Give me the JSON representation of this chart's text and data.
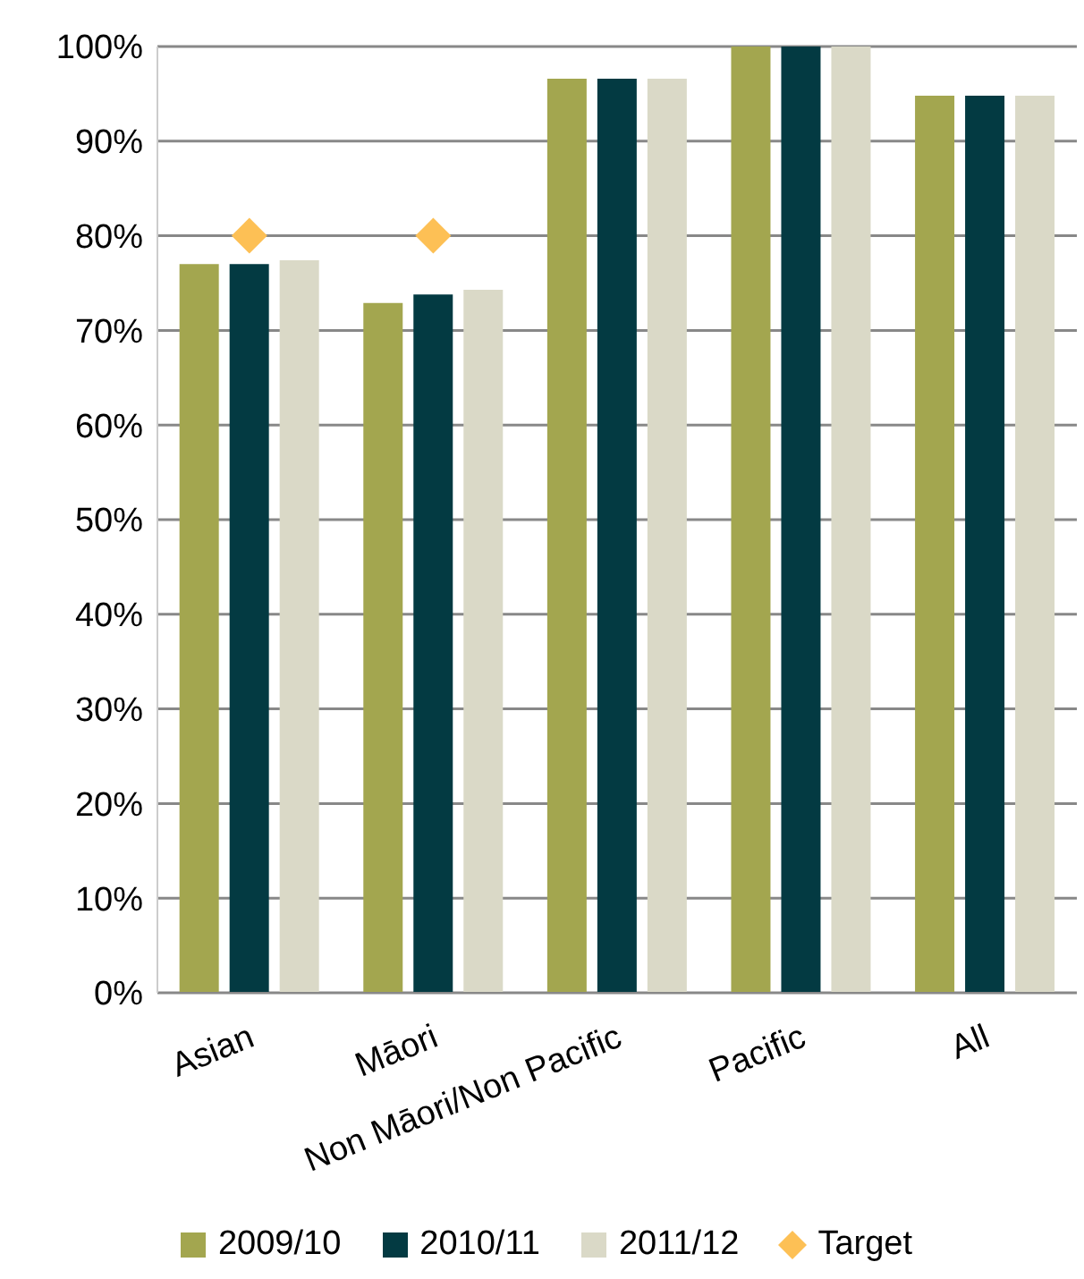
{
  "chart_data": {
    "type": "bar",
    "categories": [
      "Asian",
      "Māori",
      "Non Māori/Non Pacific",
      "Pacific",
      "All"
    ],
    "series": [
      {
        "name": "2009/10",
        "color": "#a3a64f",
        "values": [
          77,
          72.9,
          96.6,
          100,
          94.8
        ]
      },
      {
        "name": "2010/11",
        "color": "#033a42",
        "values": [
          77,
          73.8,
          96.6,
          100,
          94.8
        ]
      },
      {
        "name": "2011/12",
        "color": "#dad9c7",
        "values": [
          77.4,
          74.3,
          96.6,
          100,
          94.8
        ]
      },
      {
        "name": "Target",
        "type": "scatter",
        "color": "#fdc055",
        "marker": "diamond",
        "values": [
          80,
          80,
          null,
          null,
          null
        ]
      }
    ],
    "ylim": [
      0,
      100
    ],
    "yticks": [
      {
        "value": 0,
        "label": "0%"
      },
      {
        "value": 10,
        "label": "10%"
      },
      {
        "value": 20,
        "label": "20%"
      },
      {
        "value": 30,
        "label": "30%"
      },
      {
        "value": 40,
        "label": "40%"
      },
      {
        "value": 50,
        "label": "50%"
      },
      {
        "value": 60,
        "label": "60%"
      },
      {
        "value": 70,
        "label": "70%"
      },
      {
        "value": 80,
        "label": "80%"
      },
      {
        "value": 90,
        "label": "90%"
      },
      {
        "value": 100,
        "label": "100%"
      }
    ],
    "grid": "y",
    "legend": "bottom"
  }
}
